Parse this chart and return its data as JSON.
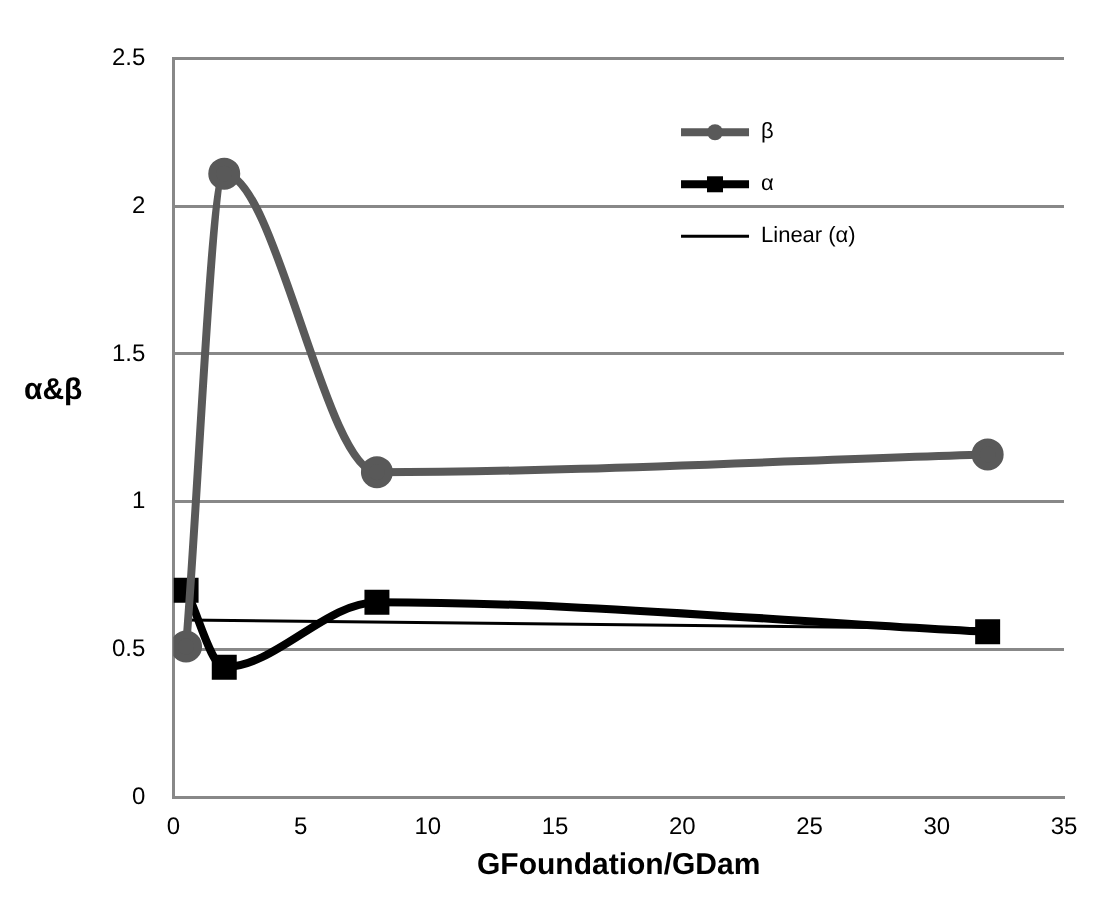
{
  "chart_data": {
    "type": "line",
    "xlabel": "GFoundation/GDam",
    "ylabel": "α&β",
    "xlim": [
      0,
      35
    ],
    "xticks": [
      0,
      5,
      10,
      15,
      20,
      25,
      30,
      35
    ],
    "ylim": [
      0,
      2.5
    ],
    "yticks": [
      0,
      0.5,
      1,
      1.5,
      2,
      2.5
    ],
    "grid": "y",
    "legend": "top right",
    "series": [
      {
        "name": "β",
        "color": "#595959",
        "marker": "circle",
        "x": [
          0.5,
          2,
          8,
          32
        ],
        "values": [
          0.51,
          2.11,
          1.1,
          1.16
        ]
      },
      {
        "name": "α",
        "color": "#000000",
        "marker": "square",
        "x": [
          0.5,
          2,
          8,
          32
        ],
        "values": [
          0.7,
          0.44,
          0.66,
          0.56
        ]
      },
      {
        "name": "Linear (α)",
        "color": "#000000",
        "marker": "none",
        "x": [
          0.5,
          32
        ],
        "values": [
          0.6,
          0.57
        ]
      }
    ]
  }
}
